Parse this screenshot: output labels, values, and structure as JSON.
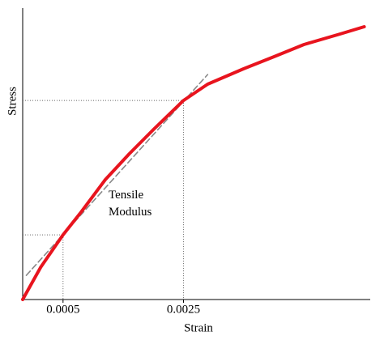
{
  "chart_data": {
    "type": "line",
    "xlabel": "Strain",
    "ylabel": "Stress",
    "annotation": "Tensile Modulus",
    "xlim": [
      -0.00017,
      0.0056
    ],
    "ylim": [
      0,
      100
    ],
    "xticks": [
      0.0005,
      0.0025
    ],
    "series": [
      {
        "color": "#e8141e",
        "style": "solid",
        "x": [
          -0.00017,
          0.00013,
          0.0005,
          0.0008,
          0.0012,
          0.0016,
          0.002,
          0.0025,
          0.0029,
          0.0035,
          0.004,
          0.0045,
          0.0051,
          0.0055
        ],
        "values": [
          0,
          11.1,
          22.2,
          30,
          41.1,
          50,
          58.3,
          68.3,
          73.9,
          79.2,
          83.3,
          87.5,
          91.1,
          93.6
        ]
      },
      {
        "color": "#888888",
        "style": "dashed",
        "x": [
          -0.00011,
          0.0029
        ],
        "values": [
          8.3,
          77.2
        ]
      }
    ],
    "guides": [
      {
        "x": 0.0005,
        "y": 22.2
      },
      {
        "x": 0.0025,
        "y": 68.3
      }
    ]
  }
}
